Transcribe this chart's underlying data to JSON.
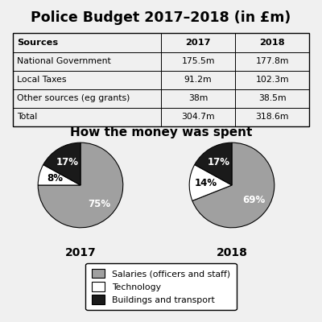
{
  "title": "Police Budget 2017–2018 (in £m)",
  "table": {
    "headers": [
      "Sources",
      "2017",
      "2018"
    ],
    "rows": [
      [
        "National Government",
        "175.5m",
        "177.8m"
      ],
      [
        "Local Taxes",
        "91.2m",
        "102.3m"
      ],
      [
        "Other sources (eg grants)",
        "38m",
        "38.5m"
      ],
      [
        "Total",
        "304.7m",
        "318.6m"
      ]
    ]
  },
  "pie_title": "How the money was spent",
  "pie_2017": {
    "values": [
      75,
      8,
      17
    ],
    "labels": [
      "75%",
      "8%",
      "17%"
    ],
    "colors": [
      "#a0a0a0",
      "#ffffff",
      "#1a1a1a"
    ],
    "year": "2017"
  },
  "pie_2018": {
    "values": [
      69,
      14,
      17
    ],
    "labels": [
      "69%",
      "14%",
      "17%"
    ],
    "colors": [
      "#a0a0a0",
      "#ffffff",
      "#1a1a1a"
    ],
    "year": "2018"
  },
  "legend_labels": [
    "Salaries (officers and staff)",
    "Technology",
    "Buildings and transport"
  ],
  "legend_colors": [
    "#a0a0a0",
    "#ffffff",
    "#1a1a1a"
  ],
  "background_color": "#f0f0f0"
}
